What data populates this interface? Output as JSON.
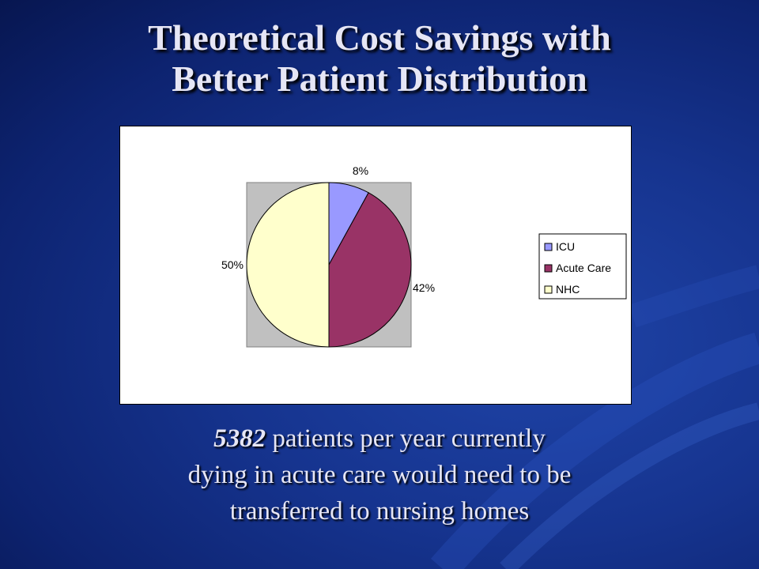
{
  "slide": {
    "title_line1": "Theoretical Cost Savings with",
    "title_line2": "Better Patient Distribution",
    "caption_number": "5382",
    "caption_line1_rest": " patients per year currently",
    "caption_line2": "dying in acute care would need to be",
    "caption_line3": "transferred to nursing homes"
  },
  "chart_data": {
    "type": "pie",
    "title": "",
    "legend_position": "right",
    "slices": [
      {
        "label": "ICU",
        "value": 8,
        "display": "8%",
        "color": "#9999ff"
      },
      {
        "label": "Acute Care",
        "value": 42,
        "display": "42%",
        "color": "#993366"
      },
      {
        "label": "NHC",
        "value": 50,
        "display": "50%",
        "color": "#ffffcc"
      }
    ],
    "plot_background": "#c0c0c0"
  }
}
